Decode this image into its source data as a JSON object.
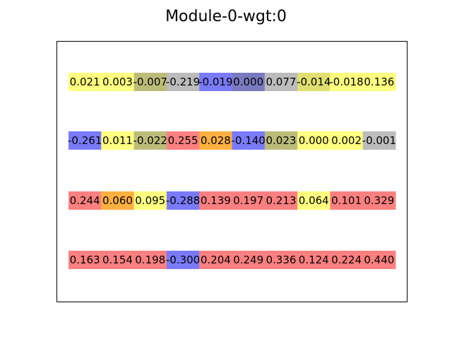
{
  "chart_data": {
    "type": "heatmap",
    "title": "Module-0-wgt:0",
    "xlabel": "",
    "ylabel": "",
    "grid": false,
    "axes_ticks": false,
    "rows": [
      {
        "labels": [
          "0.021",
          "0.003",
          "-0.007",
          "-0.219",
          "-0.019",
          "0.000",
          "0.077",
          "-0.014",
          "-0.018",
          "0.136"
        ],
        "values": [
          0.021,
          0.003,
          -0.007,
          -0.219,
          -0.019,
          0.0,
          0.077,
          -0.014,
          -0.018,
          0.136
        ],
        "colors": [
          "#ffff80",
          "#ffff80",
          "#bcbc7a",
          "#bcbcbc",
          "#7a7aff",
          "#7a7ac0",
          "#bcbcbc",
          "#e0e070",
          "#ffff80",
          "#ffff80"
        ]
      },
      {
        "labels": [
          "-0.261",
          "0.011",
          "-0.022",
          "0.255",
          "0.028",
          "-0.140",
          "0.023",
          "0.000",
          "0.002",
          "-0.001"
        ],
        "values": [
          -0.261,
          0.011,
          -0.022,
          0.255,
          0.028,
          -0.14,
          0.023,
          0.0,
          0.002,
          -0.001
        ],
        "colors": [
          "#7a7aff",
          "#ffff80",
          "#bcbc7a",
          "#ff8080",
          "#ffb040",
          "#7a7aff",
          "#bcbc7a",
          "#ffff80",
          "#ffff80",
          "#bcbcbc"
        ]
      },
      {
        "labels": [
          "0.244",
          "0.060",
          "0.095",
          "-0.288",
          "0.139",
          "0.197",
          "0.213",
          "0.064",
          "0.101",
          "0.329"
        ],
        "values": [
          0.244,
          0.06,
          0.095,
          -0.288,
          0.139,
          0.197,
          0.213,
          0.064,
          0.101,
          0.329
        ],
        "colors": [
          "#ff8080",
          "#ffb040",
          "#ffff80",
          "#7a7aff",
          "#ff8080",
          "#ff8080",
          "#ff8080",
          "#ffff80",
          "#ff8080",
          "#ff8080"
        ]
      },
      {
        "labels": [
          "0.163",
          "0.154",
          "0.198",
          "-0.300",
          "0.204",
          "0.249",
          "0.336",
          "0.124",
          "0.224",
          "0.440"
        ],
        "values": [
          0.163,
          0.154,
          0.198,
          -0.3,
          0.204,
          0.249,
          0.336,
          0.124,
          0.224,
          0.44
        ],
        "colors": [
          "#ff8080",
          "#ff8080",
          "#ff8080",
          "#7a7aff",
          "#ff8080",
          "#ff8080",
          "#ff8080",
          "#ff8080",
          "#ff8080",
          "#ff8080"
        ]
      }
    ]
  }
}
